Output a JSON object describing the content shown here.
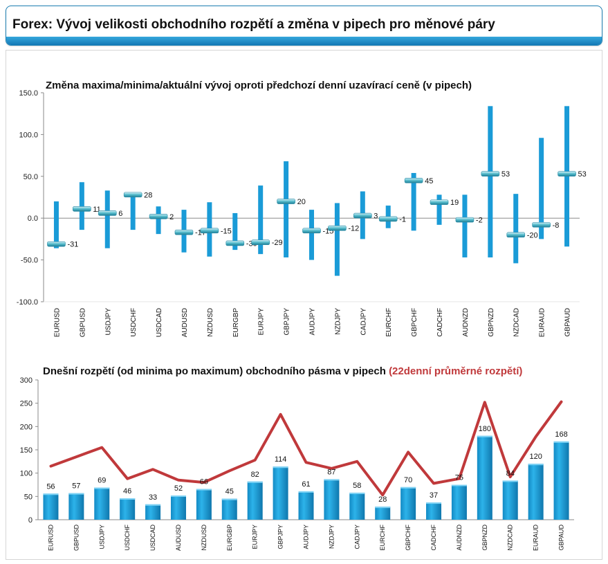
{
  "header": {
    "title": "Forex: Vývoj velikosti obchodního rozpětí a změna v pipech pro měnové páry"
  },
  "chart_data": [
    {
      "type": "range",
      "title": "Změna maxima/minima/aktuální vývoj oproti předchozí denní uzavírací ceně (v pipech)",
      "ylim": [
        -100,
        150
      ],
      "yticks": [
        "150.0",
        "100.0",
        "50.0",
        "0.0",
        "-50.0",
        "-100.0"
      ],
      "categories": [
        "EURUSD",
        "GBPUSD",
        "USDJPY",
        "USDCHF",
        "USDCAD",
        "AUDUSD",
        "NZDUSD",
        "EURGBP",
        "EURJPY",
        "GBPJPY",
        "AUDJPY",
        "NZDJPY",
        "CADJPY",
        "EURCHF",
        "GBPCHF",
        "CADCHF",
        "AUDNZD",
        "GBPNZD",
        "NZDCAD",
        "EURAUD",
        "GBPAUD"
      ],
      "high": [
        20,
        43,
        33,
        30,
        14,
        10,
        19,
        6,
        39,
        68,
        10,
        18,
        32,
        15,
        54,
        28,
        28,
        134,
        29,
        96,
        134
      ],
      "low": [
        -36,
        -14,
        -36,
        -14,
        -19,
        -41,
        -46,
        -38,
        -43,
        -47,
        -50,
        -69,
        -25,
        -12,
        -15,
        -8,
        -47,
        -47,
        -54,
        -25,
        -34
      ],
      "current": [
        -31,
        11,
        6,
        28,
        2,
        -17,
        -15,
        -30,
        -29,
        20,
        -15,
        -12,
        3,
        -1,
        45,
        19,
        -2,
        53,
        -20,
        -8,
        53
      ],
      "color": "#1a9bd7"
    },
    {
      "type": "bar+line",
      "title_main": "Dnešní rozpětí (od minima po maximum) obchodního pásma v pipech",
      "title_accent": "(22denní průměrné rozpětí)",
      "accent_color": "#c0393b",
      "ylim": [
        0,
        300
      ],
      "yticks": [
        "300",
        "250",
        "200",
        "150",
        "100",
        "50",
        "0"
      ],
      "categories": [
        "EURUSD",
        "GBPUSD",
        "USDJPY",
        "USDCHF",
        "USDCAD",
        "AUDUSD",
        "NZDUSD",
        "EURGBP",
        "EURJPY",
        "GBPJPY",
        "AUDJPY",
        "NZDJPY",
        "CADJPY",
        "EURCHF",
        "GBPCHF",
        "CADCHF",
        "AUDNZD",
        "GBPNZD",
        "NZDCAD",
        "EURAUD",
        "GBPAUD"
      ],
      "series": [
        {
          "values": [
            56,
            57,
            69,
            46,
            33,
            52,
            66,
            45,
            82,
            114,
            61,
            87,
            58,
            28,
            70,
            37,
            75,
            180,
            84,
            120,
            168
          ]
        },
        {
          "values": [
            115,
            135,
            155,
            88,
            108,
            85,
            80,
            105,
            128,
            226,
            123,
            110,
            125,
            53,
            145,
            78,
            88,
            252,
            92,
            178,
            253
          ]
        }
      ],
      "bar_color": "#1a9bd7"
    }
  ]
}
